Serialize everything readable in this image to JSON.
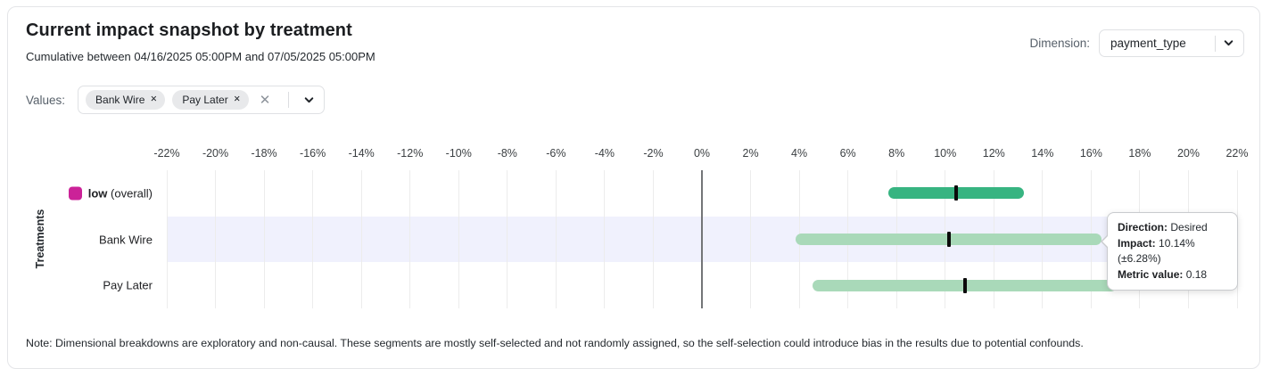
{
  "header": {
    "title": "Current impact snapshot by treatment",
    "subtitle": "Cumulative between 04/16/2025 05:00PM and 07/05/2025 05:00PM",
    "dimension_label": "Dimension:",
    "dimension_value": "payment_type"
  },
  "filters": {
    "values_label": "Values:",
    "chips": [
      {
        "label": "Bank Wire"
      },
      {
        "label": "Pay Later"
      }
    ]
  },
  "chart_data": {
    "type": "bar",
    "variant": "horizontal-range-bars",
    "ylabel": "Treatments",
    "xlim": [
      -22,
      22
    ],
    "x_ticks": [
      -22,
      -20,
      -18,
      -16,
      -14,
      -12,
      -10,
      -8,
      -6,
      -4,
      -2,
      0,
      2,
      4,
      6,
      8,
      10,
      12,
      14,
      16,
      18,
      20,
      22
    ],
    "x_tick_suffix": "%",
    "grid": true,
    "zero_line": 0,
    "rows": [
      {
        "label_bold": "low",
        "label_rest": " (overall)",
        "swatch_color": "#cb2298",
        "impact_pct": 10.45,
        "error_pct": 2.8,
        "bar_color": "#37b481",
        "highlighted": false
      },
      {
        "label": "Bank Wire",
        "impact_pct": 10.14,
        "error_pct": 6.28,
        "bar_color": "#a9d9b9",
        "highlighted": true
      },
      {
        "label": "Pay Later",
        "impact_pct": 10.8,
        "error_pct": 6.25,
        "bar_color": "#a9d9b9",
        "highlighted": false
      }
    ],
    "colors": {
      "highlight_band": "#f0f1fd",
      "gridline": "#ececec",
      "zero_line": "#737578",
      "marker": "#0b0b0b"
    }
  },
  "tooltip": {
    "direction_label": "Direction:",
    "direction_value": "Desired",
    "impact_label": "Impact:",
    "impact_value": "10.14% (±6.28%)",
    "metric_label": "Metric value:",
    "metric_value": "0.18"
  },
  "note": "Note: Dimensional breakdowns are exploratory and non-causal. These segments are mostly self-selected and not randomly assigned, so the self-selection could introduce bias in the results due to potential confounds."
}
